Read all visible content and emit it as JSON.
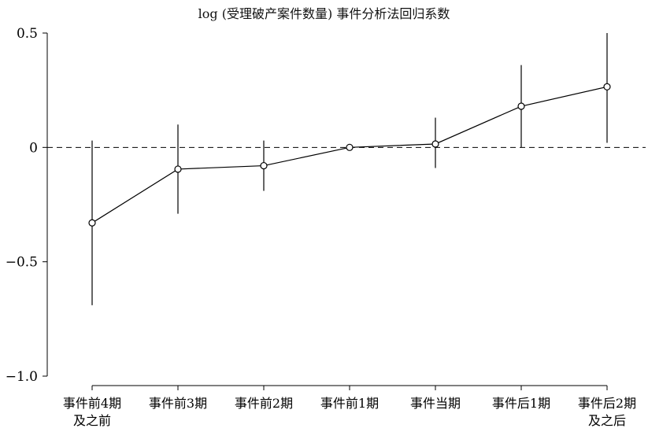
{
  "chart_data": {
    "type": "line",
    "title": "log (受理破产案件数量) 事件分析法回归系数",
    "xlabel": "",
    "ylabel": "",
    "categories": [
      [
        "事件前4期",
        "及之前"
      ],
      [
        "事件前3期"
      ],
      [
        "事件前2期"
      ],
      [
        "事件前1期"
      ],
      [
        "事件当期"
      ],
      [
        "事件后1期"
      ],
      [
        "事件后2期",
        "及之后"
      ]
    ],
    "yticks": [
      "0.5",
      "0",
      "−0.5",
      "−1.0"
    ],
    "ytick_values": [
      0.5,
      0,
      -0.5,
      -1.0
    ],
    "ylim": [
      -1.0,
      0.5
    ],
    "reference_line_y": 0,
    "series": [
      {
        "values": [
          -0.33,
          -0.095,
          -0.08,
          0.0,
          0.015,
          0.18,
          0.265
        ],
        "ci_lower": [
          -0.69,
          -0.29,
          -0.19,
          0.0,
          -0.09,
          0.0,
          0.02
        ],
        "ci_upper": [
          0.03,
          0.1,
          0.03,
          0.0,
          0.13,
          0.36,
          0.5
        ]
      }
    ],
    "grid": false,
    "legend": "none"
  }
}
